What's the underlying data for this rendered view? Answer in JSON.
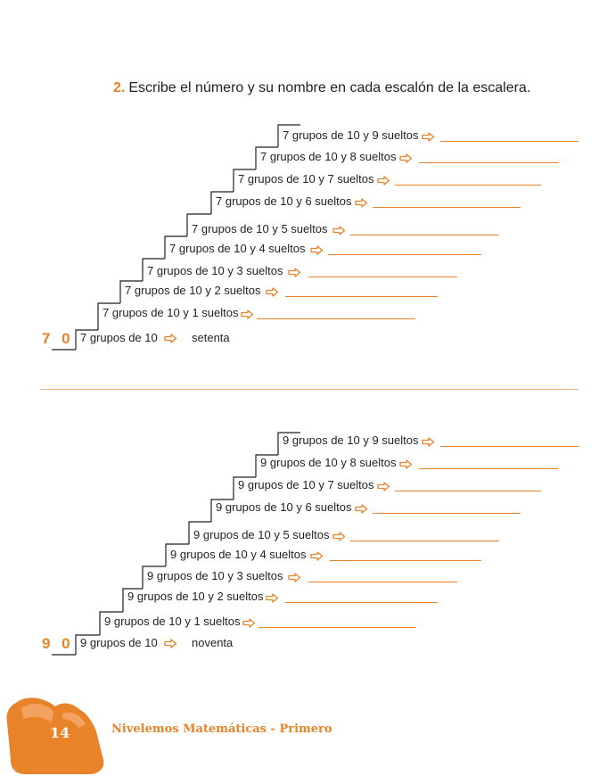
{
  "exercise": {
    "number": "2.",
    "instruction": "Escribe el número y su nombre en cada escalón de la escalera."
  },
  "staircases": [
    {
      "start_number": "7 0",
      "start_label": "7 grupos de 10",
      "start_word": "setenta",
      "steps": [
        "7 grupos de 10 y 1 sueltos",
        "7 grupos de 10 y 2 sueltos",
        "7 grupos de 10 y 3 sueltos",
        "7 grupos de 10 y 4 sueltos",
        "7 grupos de 10 y 5 sueltos",
        "7 grupos de 10 y 6 sueltos",
        "7 grupos de 10 y 7 sueltos",
        "7 grupos de 10 y 8 sueltos",
        "7 grupos de 10 y 9 sueltos"
      ]
    },
    {
      "start_number": "9 0",
      "start_label": "9 grupos de 10",
      "start_word": "noventa",
      "steps": [
        "9 grupos de 10 y 1 sueltos",
        "9 grupos de 10 y 2 sueltos",
        "9 grupos de 10 y 3 sueltos",
        "9 grupos de 10 y 4 sueltos",
        "9 grupos de 10 y 5 sueltos",
        "9 grupos de 10 y 6 sueltos",
        "9 grupos de 10 y 7 sueltos",
        "9 grupos de 10 y 8 sueltos",
        "9 grupos de 10 y 9 sueltos"
      ]
    }
  ],
  "footer": {
    "page_number": "14",
    "book_title": "Nivelemos Matemáticas - Primero"
  },
  "colors": {
    "accent": "#e8832a",
    "text": "#231f20"
  }
}
